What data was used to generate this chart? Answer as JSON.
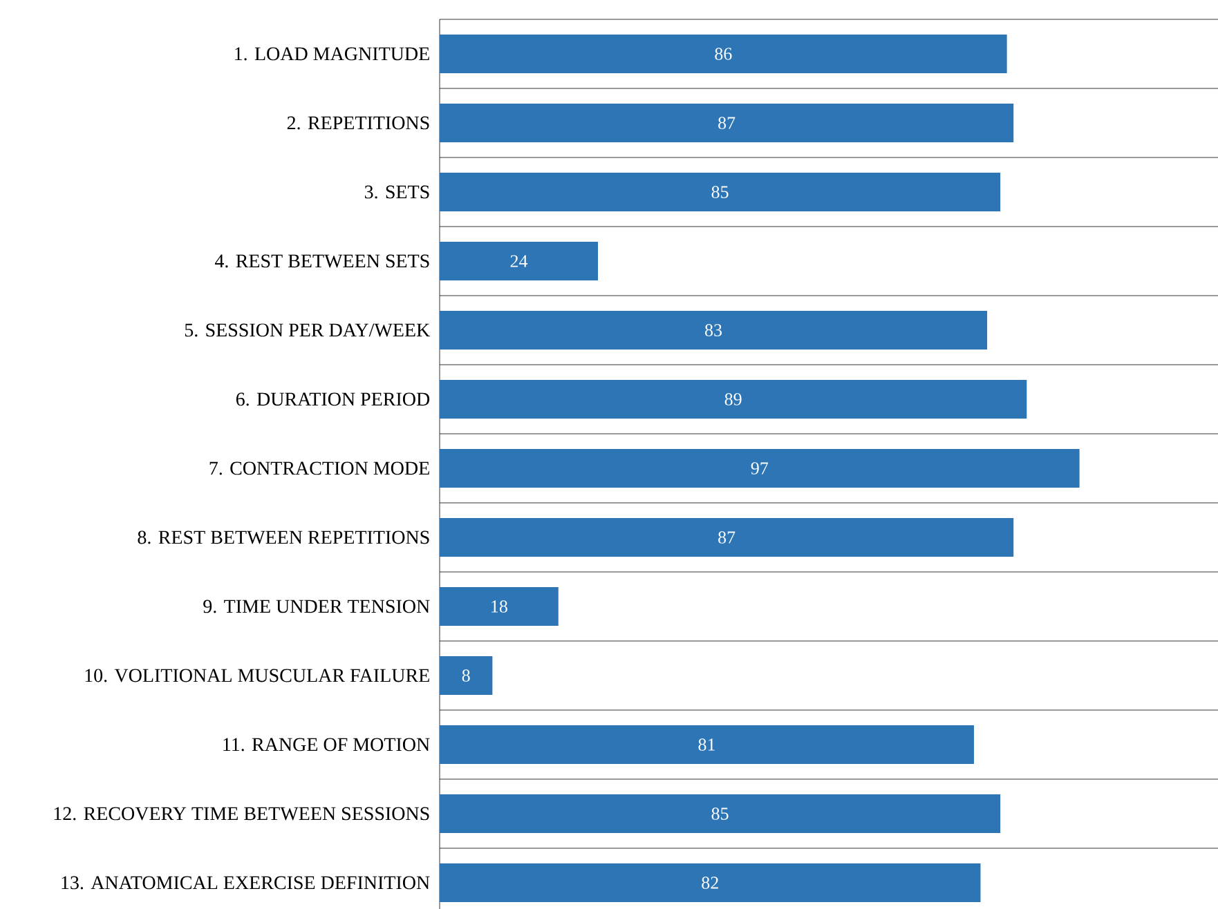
{
  "chart_data": {
    "type": "bar",
    "orientation": "horizontal",
    "categories": [
      "1. LOAD MAGNITUDE",
      "2. REPETITIONS",
      "3. SETS",
      "4. REST BETWEEN SETS",
      "5. SESSION PER DAY/WEEK",
      "6. DURATION PERIOD",
      "7. CONTRACTION MODE",
      "8. REST BETWEEN REPETITIONS",
      "9. TIME UNDER TENSION",
      "10. VOLITIONAL MUSCULAR FAILURE",
      "11. RANGE OF MOTION",
      "12. RECOVERY TIME BETWEEN SESSIONS",
      "13. ANATOMICAL EXERCISE DEFINITION"
    ],
    "values": [
      86,
      87,
      85,
      24,
      83,
      89,
      97,
      87,
      18,
      8,
      81,
      85,
      82
    ],
    "color": "#2e75b6",
    "xlim": [
      0,
      118
    ],
    "data_labels": true,
    "grid": "y",
    "tick_labels": "y"
  }
}
